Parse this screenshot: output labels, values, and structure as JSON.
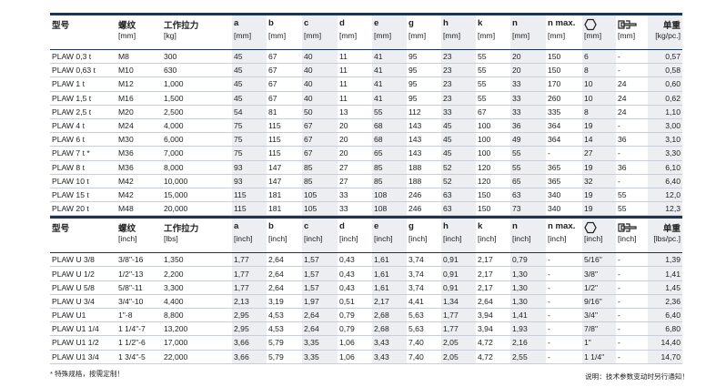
{
  "tables": [
    {
      "header": [
        {
          "name": "型号",
          "unit": null
        },
        {
          "name": "螺纹",
          "unit": "[mm]"
        },
        {
          "name": "工作拉力",
          "unit": "[kg]"
        },
        {
          "name": "a",
          "unit": "[mm]"
        },
        {
          "name": "b",
          "unit": "[mm]"
        },
        {
          "name": "c",
          "unit": "[mm]"
        },
        {
          "name": "d",
          "unit": "[mm]"
        },
        {
          "name": "e",
          "unit": "[mm]"
        },
        {
          "name": "g",
          "unit": "[mm]"
        },
        {
          "name": "h",
          "unit": "[mm]"
        },
        {
          "name": "k",
          "unit": "[mm]"
        },
        {
          "name": "n",
          "unit": "[mm]"
        },
        {
          "name": "n max.",
          "unit": "[mm]"
        },
        {
          "name": null,
          "unit": "[mm]"
        },
        {
          "name": null,
          "unit": "[mm]"
        },
        {
          "name": "单重",
          "unit": "[kg/pc.]"
        }
      ],
      "rows": [
        [
          "PLAW 0,3 t",
          "M8",
          "300",
          "45",
          "67",
          "40",
          "11",
          "41",
          "95",
          "23",
          "55",
          "20",
          "150",
          "6",
          "-",
          "0,57"
        ],
        [
          "PLAW 0,63 t",
          "M10",
          "630",
          "45",
          "67",
          "40",
          "11",
          "41",
          "95",
          "23",
          "55",
          "20",
          "150",
          "8",
          "-",
          "0,58"
        ],
        [
          "PLAW 1 t",
          "M12",
          "1,000",
          "45",
          "67",
          "40",
          "11",
          "41",
          "95",
          "23",
          "55",
          "33",
          "170",
          "10",
          "24",
          "0,60"
        ],
        [
          "PLAW 1,5 t",
          "M16",
          "1,500",
          "45",
          "67",
          "40",
          "11",
          "41",
          "95",
          "23",
          "55",
          "33",
          "260",
          "10",
          "24",
          "0,62"
        ],
        [
          "PLAW 2,5 t",
          "M20",
          "2,500",
          "54",
          "81",
          "50",
          "13",
          "55",
          "112",
          "33",
          "67",
          "33",
          "335",
          "8",
          "24",
          "1,10"
        ],
        [
          "PLAW 4 t",
          "M24",
          "4,000",
          "75",
          "115",
          "67",
          "20",
          "68",
          "143",
          "45",
          "100",
          "36",
          "364",
          "19",
          "-",
          "3,00"
        ],
        [
          "PLAW 6 t",
          "M30",
          "6,000",
          "75",
          "115",
          "67",
          "20",
          "68",
          "143",
          "45",
          "100",
          "49",
          "364",
          "14",
          "36",
          "3,10"
        ],
        [
          "PLAW 7 t *",
          "M36",
          "7,000",
          "75",
          "115",
          "67",
          "20",
          "65",
          "143",
          "45",
          "100",
          "55",
          "-",
          "27",
          "-",
          "3,30"
        ],
        [
          "PLAW 8 t",
          "M36",
          "8,000",
          "93",
          "147",
          "85",
          "27",
          "85",
          "188",
          "52",
          "120",
          "55",
          "365",
          "19",
          "36",
          "6,10"
        ],
        [
          "PLAW 10 t",
          "M42",
          "10,000",
          "93",
          "147",
          "85",
          "27",
          "85",
          "188",
          "52",
          "120",
          "65",
          "365",
          "32",
          "-",
          "6,40"
        ],
        [
          "PLAW 15 t",
          "M42",
          "15,000",
          "115",
          "181",
          "105",
          "33",
          "108",
          "246",
          "63",
          "150",
          "63",
          "340",
          "19",
          "55",
          "12,0"
        ],
        [
          "PLAW 20 t",
          "M48",
          "20,000",
          "115",
          "181",
          "105",
          "33",
          "108",
          "246",
          "63",
          "150",
          "73",
          "340",
          "19",
          "55",
          "12,3"
        ]
      ]
    },
    {
      "header": [
        {
          "name": "型号",
          "unit": null
        },
        {
          "name": "螺纹",
          "unit": "[inch]"
        },
        {
          "name": "工作拉力",
          "unit": "[lbs]"
        },
        {
          "name": "a",
          "unit": "[inch]"
        },
        {
          "name": "b",
          "unit": "[inch]"
        },
        {
          "name": "c",
          "unit": "[inch]"
        },
        {
          "name": "d",
          "unit": "[inch]"
        },
        {
          "name": "e",
          "unit": "[inch]"
        },
        {
          "name": "g",
          "unit": "[inch]"
        },
        {
          "name": "h",
          "unit": "[inch]"
        },
        {
          "name": "k",
          "unit": "[inch]"
        },
        {
          "name": "n",
          "unit": "[inch]"
        },
        {
          "name": "n max.",
          "unit": "[inch]"
        },
        {
          "name": null,
          "unit": "[inch]"
        },
        {
          "name": null,
          "unit": "[inch]"
        },
        {
          "name": "单重",
          "unit": "[lbs/pc.]"
        }
      ],
      "rows": [
        [
          "PLAW U 3/8",
          "3/8\"-16",
          "1,350",
          "1,77",
          "2,64",
          "1,57",
          "0,43",
          "1,61",
          "3,74",
          "0,91",
          "2,17",
          "0,79",
          "-",
          "5/16\"",
          "-",
          "1,39"
        ],
        [
          "PLAW U 1/2",
          "1/2\"-13",
          "2,200",
          "1,77",
          "2,64",
          "1,57",
          "0,43",
          "1,61",
          "3,74",
          "0,91",
          "2,17",
          "1,30",
          "-",
          "3/8\"",
          "-",
          "1,41"
        ],
        [
          "PLAW U 5/8",
          "5/8\"-11",
          "3,300",
          "1,77",
          "2,64",
          "1,57",
          "0,43",
          "1,61",
          "3,74",
          "0,91",
          "2,17",
          "1,30",
          "-",
          "1/2\"",
          "-",
          "1,45"
        ],
        [
          "PLAW U 3/4",
          "3/4\"-10",
          "4,400",
          "2,13",
          "3,19",
          "1,97",
          "0,51",
          "2,17",
          "4,41",
          "1,34",
          "2,64",
          "1,30",
          "-",
          "9/16\"",
          "-",
          "2,36"
        ],
        [
          "PLAW U1",
          "1\"-8",
          "8,800",
          "2,95",
          "4,53",
          "2,64",
          "0,79",
          "2,68",
          "5,63",
          "1,77",
          "3,94",
          "1,41",
          "-",
          "3/4\"",
          "-",
          "6,40"
        ],
        [
          "PLAW U1 1/4",
          "1 1/4\"-7",
          "13,200",
          "2,95",
          "4,53",
          "2,64",
          "0,79",
          "2,68",
          "5,63",
          "1,77",
          "3,94",
          "1,93",
          "-",
          "7/8\"",
          "-",
          "6,80"
        ],
        [
          "PLAW U1 1/2",
          "1 1/2\"-6",
          "17,000",
          "3,66",
          "5,79",
          "3,35",
          "1,06",
          "3,43",
          "7,40",
          "2,05",
          "4,72",
          "2,16",
          "-",
          "1\"",
          "-",
          "14,40"
        ],
        [
          "PLAW U1 3/4",
          "1 3/4\"-5",
          "22,000",
          "3,66",
          "5,79",
          "3,35",
          "1,06",
          "3,43",
          "7,40",
          "2,05",
          "4,72",
          "2,55",
          "-",
          "1 1/4\"",
          "-",
          "14,70"
        ]
      ]
    }
  ],
  "footer": {
    "note": "* 特殊规格，按需定制！",
    "disclaimer": "说明：技术参数变动时另行通知！"
  }
}
